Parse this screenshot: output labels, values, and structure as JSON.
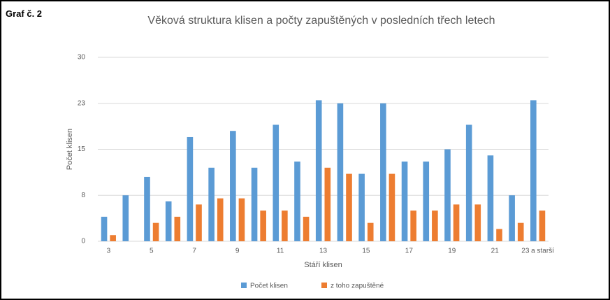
{
  "label": "Graf č. 2",
  "chart_data": {
    "type": "bar",
    "title": "Věková struktura klisen a počty  zapuštěných v posledních třech letech",
    "x_label": "Stáří klisen",
    "y_label": "Počet klisen",
    "categories": [
      "3",
      null,
      "5",
      null,
      "7",
      null,
      "9",
      null,
      "11",
      null,
      "13",
      null,
      "15",
      null,
      "17",
      null,
      "19",
      null,
      "21",
      null,
      "23 a starší"
    ],
    "series": [
      {
        "name": "Počet klisen",
        "color": "#5b9bd5",
        "values": [
          4,
          7.5,
          10.5,
          6.5,
          17,
          12,
          18,
          12,
          19,
          13,
          23,
          22.5,
          11,
          22.5,
          13,
          13,
          15,
          19,
          14,
          7.5,
          23
        ]
      },
      {
        "name": "z toho zapuštěné",
        "color": "#ed7d31",
        "values": [
          1,
          0,
          3,
          4,
          6,
          7,
          7,
          5,
          5,
          4,
          12,
          11,
          3,
          11,
          5,
          5,
          6,
          6,
          2,
          3,
          5
        ]
      }
    ],
    "ylim": [
      0,
      30
    ],
    "yticks": [
      0,
      {
        "value": 7.5,
        "label": "8"
      },
      15,
      {
        "value": 22.5,
        "label": "23"
      },
      30
    ],
    "grid": true,
    "legend": "bottom"
  }
}
